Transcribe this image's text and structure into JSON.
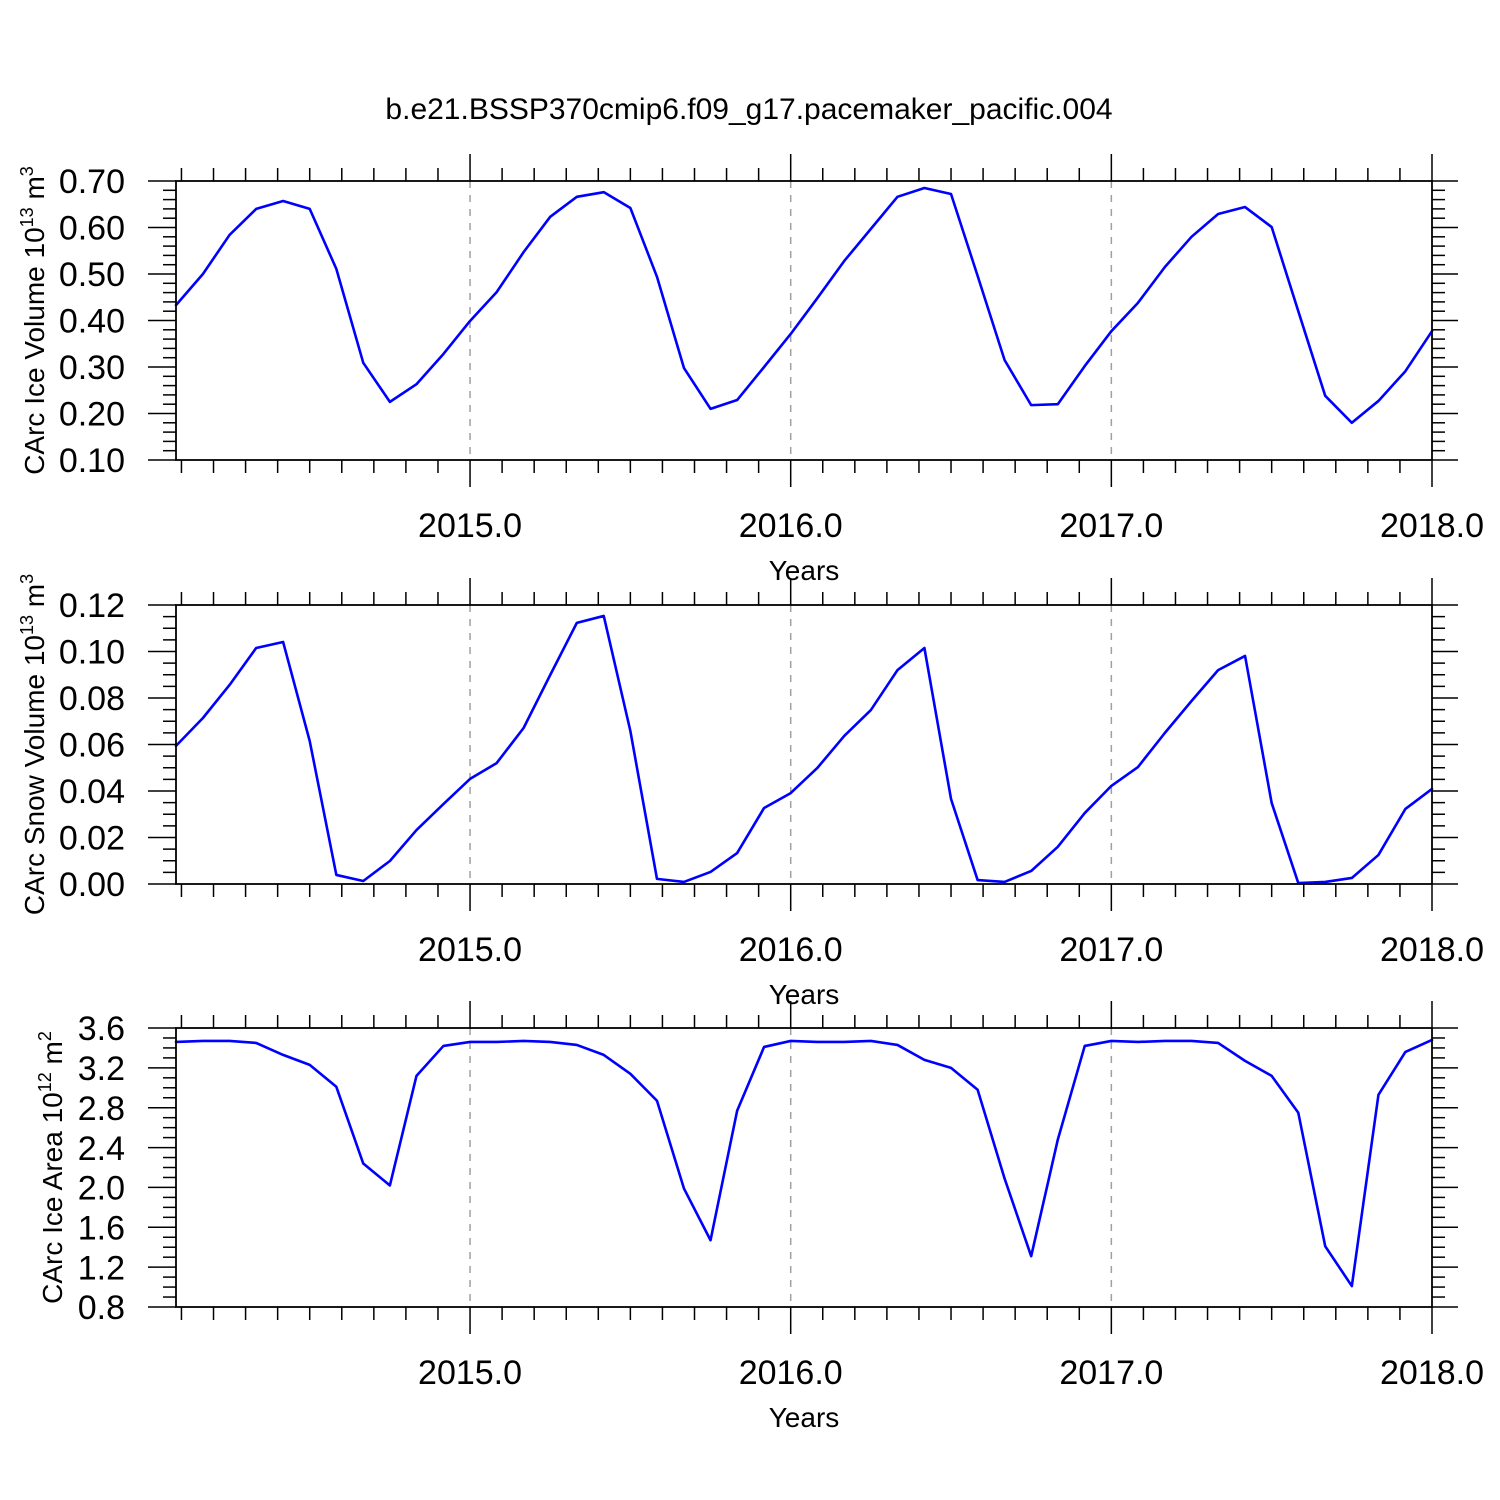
{
  "figure": {
    "title": "b.e21.BSSP370cmip6.f09_g17.pacemaker_pacific.004"
  },
  "chart_data": [
    {
      "type": "line",
      "xlabel": "Years",
      "ylabel": [
        {
          "text": "CArc Ice Volume 10"
        },
        {
          "text": "13",
          "sup": true
        },
        {
          "text": " m"
        },
        {
          "text": "3",
          "sup": true
        }
      ],
      "xlim": [
        2014.083,
        2018.0
      ],
      "ylim": [
        0.1,
        0.7
      ],
      "xtick_labels": [
        "2015.0",
        "2016.0",
        "2017.0",
        "2018.0"
      ],
      "ytick_labels": [
        "0.10",
        "0.20",
        "0.30",
        "0.40",
        "0.50",
        "0.60",
        "0.70"
      ],
      "xgrid": true,
      "ygrid": false,
      "x": [
        2014.083,
        2014.167,
        2014.25,
        2014.333,
        2014.417,
        2014.5,
        2014.583,
        2014.667,
        2014.75,
        2014.833,
        2014.917,
        2015.0,
        2015.083,
        2015.167,
        2015.25,
        2015.333,
        2015.417,
        2015.5,
        2015.583,
        2015.667,
        2015.75,
        2015.833,
        2015.917,
        2016.0,
        2016.083,
        2016.167,
        2016.25,
        2016.333,
        2016.417,
        2016.5,
        2016.583,
        2016.667,
        2016.75,
        2016.833,
        2016.917,
        2017.0,
        2017.083,
        2017.167,
        2017.25,
        2017.333,
        2017.417,
        2017.5,
        2017.583,
        2017.667,
        2017.75,
        2017.833,
        2017.917,
        2018.0
      ],
      "series": [
        {
          "color": "#0000ff",
          "values": [
            0.433,
            0.5,
            0.584,
            0.64,
            0.657,
            0.64,
            0.511,
            0.309,
            0.225,
            0.263,
            0.328,
            0.399,
            0.461,
            0.547,
            0.623,
            0.666,
            0.676,
            0.642,
            0.494,
            0.298,
            0.21,
            0.229,
            0.3,
            0.371,
            0.448,
            0.528,
            0.597,
            0.666,
            0.685,
            0.672,
            0.496,
            0.315,
            0.218,
            0.22,
            0.302,
            0.377,
            0.438,
            0.515,
            0.58,
            0.629,
            0.644,
            0.601,
            0.42,
            0.238,
            0.18,
            0.227,
            0.291,
            0.377
          ]
        }
      ]
    },
    {
      "type": "line",
      "xlabel": "Years",
      "ylabel": [
        {
          "text": "CArc Snow Volume 10"
        },
        {
          "text": "13",
          "sup": true
        },
        {
          "text": " m"
        },
        {
          "text": "3",
          "sup": true
        }
      ],
      "xlim": [
        2014.083,
        2018.0
      ],
      "ylim": [
        0.0,
        0.12
      ],
      "xtick_labels": [
        "2015.0",
        "2016.0",
        "2017.0",
        "2018.0"
      ],
      "ytick_labels": [
        "0.00",
        "0.02",
        "0.04",
        "0.06",
        "0.08",
        "0.10",
        "0.12"
      ],
      "xgrid": true,
      "ygrid": false,
      "x": [
        2014.083,
        2014.167,
        2014.25,
        2014.333,
        2014.417,
        2014.5,
        2014.583,
        2014.667,
        2014.75,
        2014.833,
        2014.917,
        2015.0,
        2015.083,
        2015.167,
        2015.25,
        2015.333,
        2015.417,
        2015.5,
        2015.583,
        2015.667,
        2015.75,
        2015.833,
        2015.917,
        2016.0,
        2016.083,
        2016.167,
        2016.25,
        2016.333,
        2016.417,
        2016.5,
        2016.583,
        2016.667,
        2016.75,
        2016.833,
        2016.917,
        2017.0,
        2017.083,
        2017.167,
        2017.25,
        2017.333,
        2017.417,
        2017.5,
        2017.583,
        2017.667,
        2017.75,
        2017.833,
        2017.917,
        2018.0
      ],
      "series": [
        {
          "color": "#0000ff",
          "values": [
            0.0594,
            0.0714,
            0.0856,
            0.1015,
            0.1041,
            0.0615,
            0.0039,
            0.0013,
            0.0099,
            0.0232,
            0.0344,
            0.0452,
            0.052,
            0.0671,
            0.0899,
            0.1123,
            0.1153,
            0.0658,
            0.0022,
            0.0009,
            0.0052,
            0.0133,
            0.0327,
            0.0391,
            0.0499,
            0.0637,
            0.0748,
            0.092,
            0.1015,
            0.0366,
            0.0017,
            0.0009,
            0.0056,
            0.016,
            0.0305,
            0.0422,
            0.0503,
            0.065,
            0.0787,
            0.092,
            0.0981,
            0.0348,
            0.0004,
            0.0009,
            0.0026,
            0.0125,
            0.0323,
            0.0409
          ]
        }
      ]
    },
    {
      "type": "line",
      "xlabel": "Years",
      "ylabel": [
        {
          "text": "CArc Ice Area 10"
        },
        {
          "text": "12",
          "sup": true
        },
        {
          "text": " m"
        },
        {
          "text": "2",
          "sup": true
        }
      ],
      "xlim": [
        2014.083,
        2018.0
      ],
      "ylim": [
        0.8,
        3.6
      ],
      "xtick_labels": [
        "2015.0",
        "2016.0",
        "2017.0",
        "2018.0"
      ],
      "ytick_labels": [
        "0.8",
        "1.2",
        "1.6",
        "2.0",
        "2.4",
        "2.8",
        "3.2",
        "3.6"
      ],
      "xgrid": true,
      "ygrid": false,
      "x": [
        2014.083,
        2014.167,
        2014.25,
        2014.333,
        2014.417,
        2014.5,
        2014.583,
        2014.667,
        2014.75,
        2014.833,
        2014.917,
        2015.0,
        2015.083,
        2015.167,
        2015.25,
        2015.333,
        2015.417,
        2015.5,
        2015.583,
        2015.667,
        2015.75,
        2015.833,
        2015.917,
        2016.0,
        2016.083,
        2016.167,
        2016.25,
        2016.333,
        2016.417,
        2016.5,
        2016.583,
        2016.667,
        2016.75,
        2016.833,
        2016.917,
        2017.0,
        2017.083,
        2017.167,
        2017.25,
        2017.333,
        2017.417,
        2017.5,
        2017.583,
        2017.667,
        2017.75,
        2017.833,
        2017.917,
        2018.0
      ],
      "series": [
        {
          "color": "#0000ff",
          "values": [
            3.46,
            3.47,
            3.47,
            3.45,
            3.33,
            3.23,
            3.01,
            2.24,
            2.02,
            3.12,
            3.42,
            3.46,
            3.46,
            3.47,
            3.46,
            3.43,
            3.33,
            3.14,
            2.87,
            1.99,
            1.47,
            2.77,
            3.41,
            3.47,
            3.46,
            3.46,
            3.47,
            3.43,
            3.28,
            3.2,
            2.98,
            2.09,
            1.31,
            2.48,
            3.42,
            3.47,
            3.46,
            3.47,
            3.47,
            3.45,
            3.27,
            3.12,
            2.75,
            1.41,
            1.01,
            2.93,
            3.36,
            3.48
          ]
        }
      ]
    }
  ]
}
